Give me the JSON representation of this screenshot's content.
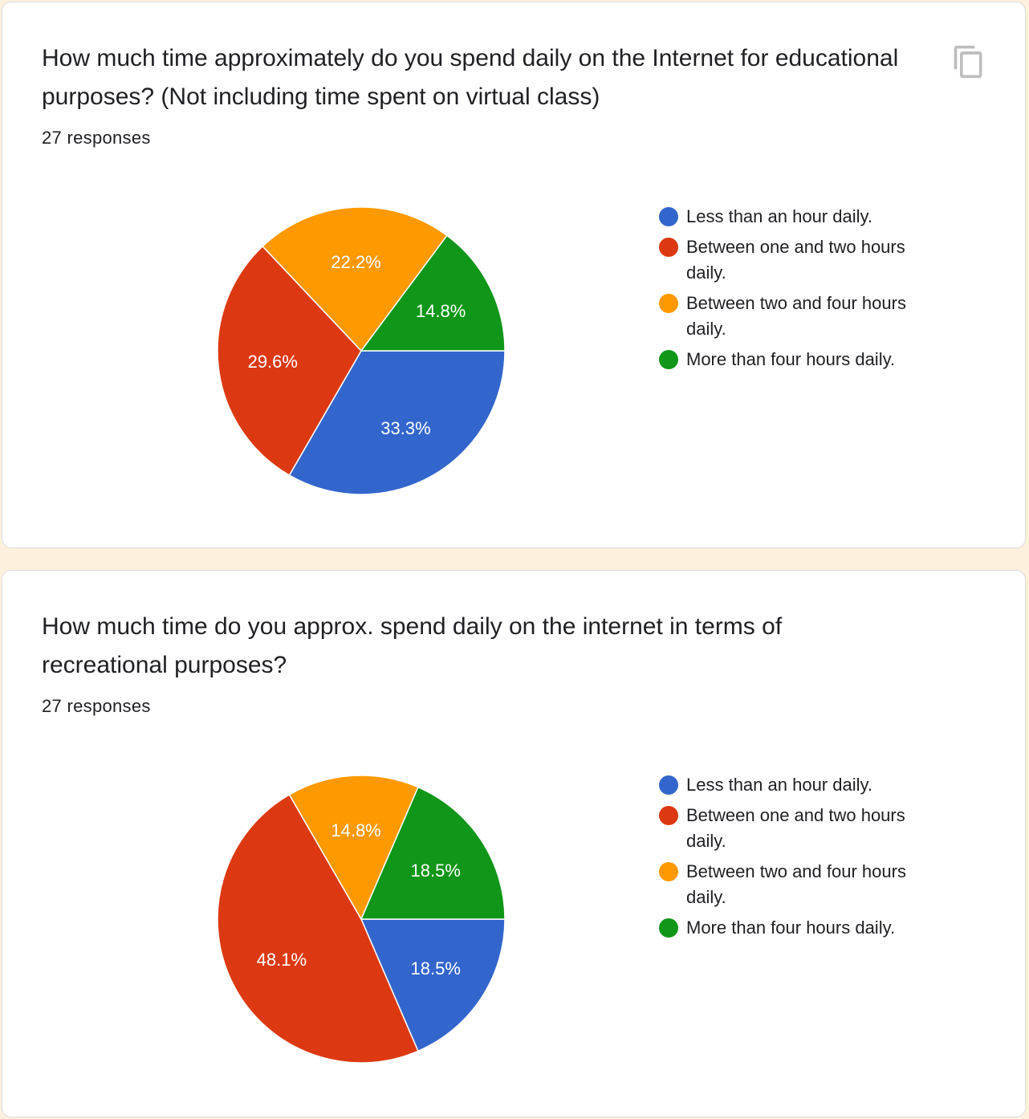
{
  "cards": [
    {
      "title": "How much time approximately do you spend daily on the Internet for educational purposes? (Not including time spent on virtual class)",
      "responses": "27 responses"
    },
    {
      "title": "How much time do you approx. spend daily on the internet in terms of recreational purposes?",
      "responses": "27 responses"
    }
  ],
  "copy_icon": "copy-icon",
  "chart_data": [
    {
      "type": "pie",
      "title": "How much time approximately do you spend daily on the Internet for educational purposes? (Not including time spent on virtual class)",
      "categories": [
        "Less than an hour daily.",
        "Between one and two hours daily.",
        "Between two and four hours daily.",
        "More than four hours daily."
      ],
      "values": [
        33.3,
        29.6,
        22.2,
        14.8
      ],
      "labels": [
        "33.3%",
        "29.6%",
        "22.2%",
        "14.8%"
      ],
      "colors": [
        "#3366cc",
        "#dc3912",
        "#ff9900",
        "#109618"
      ],
      "legend_position": "right"
    },
    {
      "type": "pie",
      "title": "How much time do you approx. spend daily on the internet in terms of recreational purposes?",
      "categories": [
        "Less than an hour daily.",
        "Between one and two hours daily.",
        "Between two and four hours daily.",
        "More than four hours daily."
      ],
      "values": [
        18.5,
        48.1,
        14.8,
        18.5
      ],
      "labels": [
        "18.5%",
        "48.1%",
        "14.8%",
        "18.5%"
      ],
      "colors": [
        "#3366cc",
        "#dc3912",
        "#ff9900",
        "#109618"
      ],
      "legend_position": "right"
    }
  ]
}
